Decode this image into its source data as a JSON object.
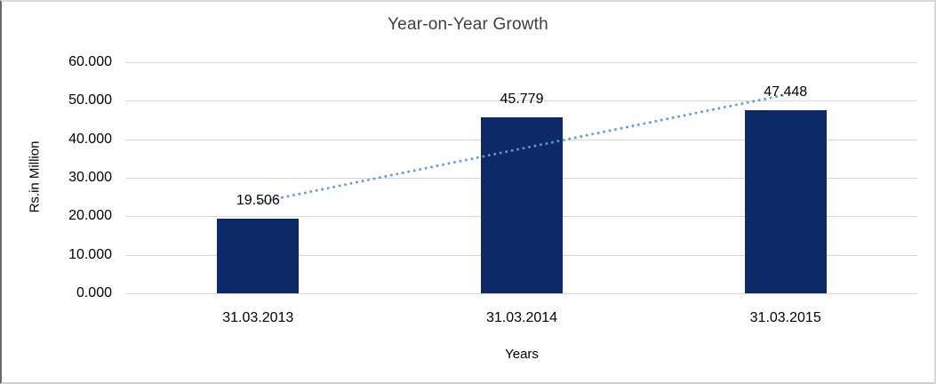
{
  "chart_data": {
    "type": "bar",
    "title": "Year-on-Year Growth",
    "xlabel": "Years",
    "ylabel": "Rs.in Million",
    "categories": [
      "31.03.2013",
      "31.03.2014",
      "31.03.2015"
    ],
    "values": [
      19.506,
      45.779,
      47.448
    ],
    "data_labels": [
      "19.506",
      "45.779",
      "47.448"
    ],
    "ylim": [
      0,
      60
    ],
    "ytick_step": 10,
    "ytick_labels": [
      "0.000",
      "10.000",
      "20.000",
      "30.000",
      "40.000",
      "50.000",
      "60.000"
    ],
    "grid": true,
    "legend": "none",
    "bar_color": "#0D2A66",
    "gridline_color": "#D6D6D6",
    "trendline": {
      "type": "linear",
      "style": "dotted",
      "color": "#5B9BD5",
      "fit_values": [
        23.607,
        37.578,
        51.549
      ]
    }
  }
}
